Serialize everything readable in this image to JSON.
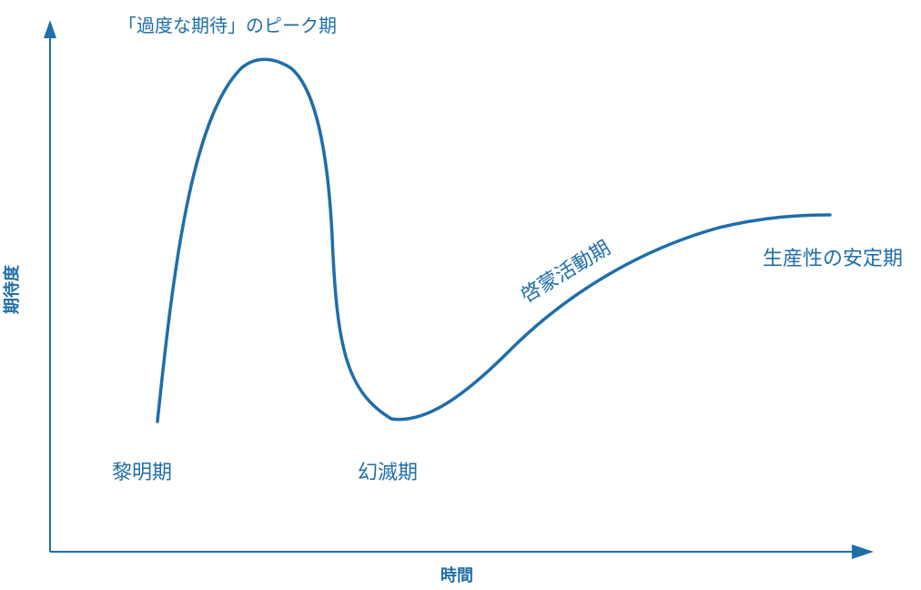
{
  "diagram": {
    "axes": {
      "x_label": "時間",
      "y_label": "期待度"
    },
    "phases": {
      "peak": "「過度な期待」のピーク期",
      "trigger": "黎明期",
      "trough": "幻滅期",
      "slope": "啓蒙活動期",
      "plateau": "生産性の安定期"
    },
    "colors": {
      "line": "#1f6ea8",
      "text": "#1f6ea8",
      "background": "#ffffff"
    }
  }
}
